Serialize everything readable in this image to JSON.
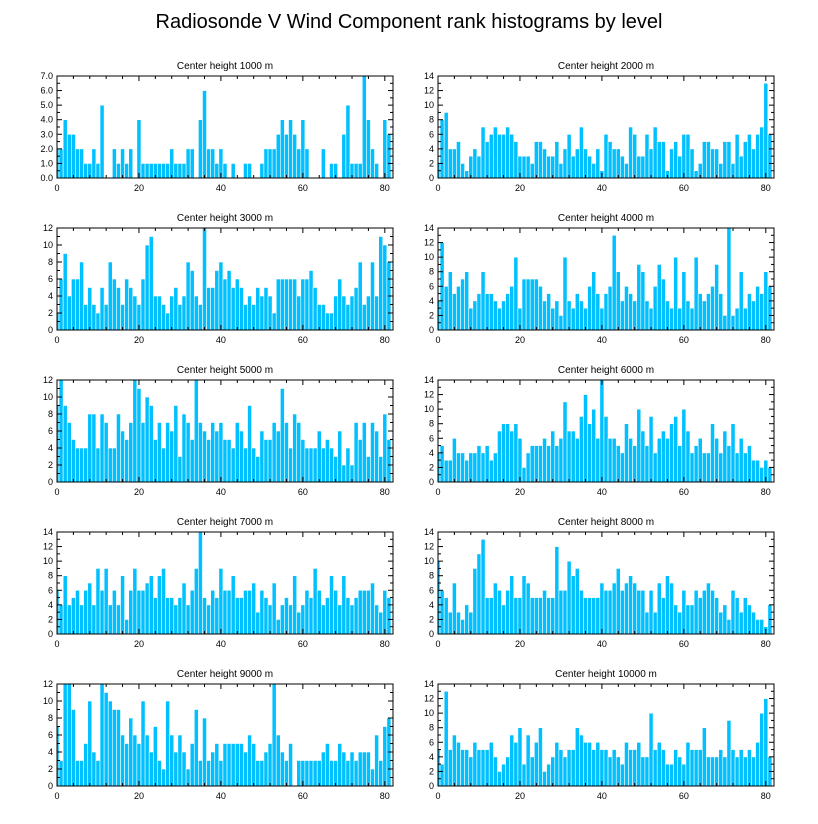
{
  "figure": {
    "title": "Radiosonde V Wind Component rank histograms by level"
  },
  "chart_data": [
    {
      "type": "bar",
      "title": "Center height 1000 m",
      "xlim": [
        0,
        82
      ],
      "ylim": [
        0,
        7
      ],
      "xticks": [
        0,
        20,
        40,
        60,
        80
      ],
      "yticks": [
        0,
        1,
        2,
        3,
        4,
        5,
        6,
        7
      ],
      "ytick_labels": [
        "0.0",
        "1.0",
        "2.0",
        "3.0",
        "4.0",
        "5.0",
        "6.0",
        "7.0"
      ],
      "x_start": 0,
      "values": [
        2,
        2,
        4,
        3,
        3,
        2,
        2,
        1,
        1,
        2,
        1,
        5,
        0,
        0,
        2,
        1,
        2,
        1,
        2,
        0,
        4,
        1,
        1,
        1,
        1,
        1,
        1,
        1,
        2,
        1,
        1,
        1,
        2,
        2,
        0,
        4,
        6,
        2,
        2,
        1,
        2,
        1,
        0,
        1,
        0,
        0,
        1,
        1,
        0,
        0,
        1,
        2,
        2,
        2,
        3,
        4,
        3,
        4,
        3,
        2,
        4,
        2,
        0,
        0,
        0,
        2,
        0,
        1,
        1,
        0,
        3,
        5,
        1,
        1,
        1,
        7,
        4,
        2,
        1,
        0,
        4,
        3
      ]
    },
    {
      "type": "bar",
      "title": "Center height 2000 m",
      "xlim": [
        0,
        82
      ],
      "ylim": [
        0,
        14
      ],
      "xticks": [
        0,
        20,
        40,
        60,
        80
      ],
      "yticks": [
        0,
        2,
        4,
        6,
        8,
        10,
        12,
        14
      ],
      "ytick_labels": [
        "0",
        "2",
        "4",
        "6",
        "8",
        "10",
        "12",
        "14"
      ],
      "x_start": 0,
      "values": [
        2,
        8,
        9,
        4,
        4,
        5,
        2,
        1,
        3,
        4,
        3,
        7,
        5,
        6,
        7,
        6,
        6,
        7,
        6,
        5,
        3,
        3,
        3,
        2,
        5,
        5,
        4,
        3,
        3,
        5,
        2,
        4,
        6,
        3,
        4,
        7,
        4,
        3,
        2,
        4,
        1,
        6,
        5,
        4,
        4,
        3,
        2,
        7,
        6,
        3,
        3,
        6,
        4,
        7,
        5,
        5,
        1,
        4,
        5,
        3,
        6,
        6,
        4,
        1,
        2,
        5,
        5,
        4,
        4,
        2,
        5,
        5,
        2,
        6,
        3,
        5,
        6,
        4,
        6,
        7,
        13,
        6
      ]
    },
    {
      "type": "bar",
      "title": "Center height 3000 m",
      "xlim": [
        0,
        82
      ],
      "ylim": [
        0,
        12
      ],
      "xticks": [
        0,
        20,
        40,
        60,
        80
      ],
      "yticks": [
        0,
        2,
        4,
        6,
        8,
        10,
        12
      ],
      "ytick_labels": [
        "0",
        "2",
        "4",
        "6",
        "8",
        "10",
        "12"
      ],
      "x_start": 0,
      "values": [
        2,
        6,
        9,
        4,
        6,
        6,
        8,
        3,
        5,
        3,
        2,
        5,
        3,
        8,
        6,
        5,
        3,
        6,
        5,
        4,
        3,
        6,
        10,
        11,
        4,
        4,
        3,
        2,
        4,
        5,
        3,
        4,
        8,
        7,
        4,
        3,
        12,
        5,
        5,
        7,
        8,
        6,
        7,
        5,
        6,
        5,
        3,
        4,
        3,
        5,
        4,
        5,
        4,
        2,
        6,
        6,
        6,
        6,
        6,
        4,
        6,
        6,
        7,
        5,
        3,
        3,
        2,
        2,
        4,
        6,
        4,
        3,
        4,
        5,
        8,
        3,
        4,
        8,
        4,
        11,
        10,
        8
      ]
    },
    {
      "type": "bar",
      "title": "Center height 4000 m",
      "xlim": [
        0,
        82
      ],
      "ylim": [
        0,
        14
      ],
      "xticks": [
        0,
        20,
        40,
        60,
        80
      ],
      "yticks": [
        0,
        2,
        4,
        6,
        8,
        10,
        12,
        14
      ],
      "ytick_labels": [
        "0",
        "2",
        "4",
        "6",
        "8",
        "10",
        "12",
        "14"
      ],
      "x_start": 0,
      "values": [
        4,
        12,
        6,
        8,
        5,
        6,
        7,
        8,
        3,
        4,
        5,
        8,
        5,
        5,
        4,
        3,
        4,
        5,
        6,
        10,
        3,
        7,
        7,
        7,
        7,
        6,
        4,
        5,
        3,
        4,
        2,
        10,
        4,
        3,
        5,
        4,
        3,
        6,
        8,
        5,
        3,
        5,
        6,
        13,
        8,
        4,
        6,
        5,
        4,
        9,
        8,
        4,
        3,
        6,
        9,
        7,
        4,
        3,
        10,
        3,
        8,
        4,
        3,
        10,
        5,
        4,
        5,
        6,
        9,
        5,
        2,
        14,
        2,
        3,
        8,
        3,
        5,
        4,
        6,
        5,
        8,
        6
      ]
    },
    {
      "type": "bar",
      "title": "Center height 5000 m",
      "xlim": [
        0,
        82
      ],
      "ylim": [
        0,
        12
      ],
      "xticks": [
        0,
        20,
        40,
        60,
        80
      ],
      "yticks": [
        0,
        2,
        4,
        6,
        8,
        10,
        12
      ],
      "ytick_labels": [
        "0",
        "2",
        "4",
        "6",
        "8",
        "10",
        "12"
      ],
      "x_start": 0,
      "values": [
        9,
        12,
        9,
        7,
        5,
        4,
        4,
        4,
        8,
        8,
        4,
        8,
        7,
        4,
        4,
        8,
        6,
        5,
        7,
        12,
        11,
        7,
        10,
        9,
        5,
        7,
        4,
        7,
        6,
        9,
        3,
        8,
        7,
        5,
        12,
        7,
        6,
        5,
        7,
        6,
        7,
        5,
        5,
        4,
        7,
        6,
        4,
        9,
        4,
        3,
        6,
        5,
        5,
        7,
        6,
        11,
        7,
        4,
        8,
        7,
        5,
        4,
        4,
        4,
        6,
        4,
        5,
        4,
        3,
        6,
        2,
        4,
        2,
        7,
        5,
        7,
        3,
        7,
        6,
        3,
        8,
        5
      ]
    },
    {
      "type": "bar",
      "title": "Center height 6000 m",
      "xlim": [
        0,
        82
      ],
      "ylim": [
        0,
        14
      ],
      "xticks": [
        0,
        20,
        40,
        60,
        80
      ],
      "yticks": [
        0,
        2,
        4,
        6,
        8,
        10,
        12,
        14
      ],
      "ytick_labels": [
        "0",
        "2",
        "4",
        "6",
        "8",
        "10",
        "12",
        "14"
      ],
      "x_start": 0,
      "values": [
        4,
        5,
        3,
        3,
        6,
        4,
        4,
        3,
        4,
        4,
        5,
        4,
        5,
        3,
        4,
        7,
        8,
        8,
        7,
        8,
        6,
        2,
        4,
        5,
        5,
        5,
        6,
        5,
        7,
        5,
        6,
        11,
        7,
        7,
        6,
        9,
        12,
        8,
        10,
        6,
        14,
        9,
        6,
        6,
        5,
        4,
        8,
        6,
        5,
        10,
        7,
        5,
        9,
        4,
        6,
        7,
        6,
        8,
        9,
        5,
        10,
        7,
        4,
        5,
        6,
        4,
        4,
        8,
        6,
        4,
        7,
        5,
        8,
        4,
        6,
        4,
        5,
        3,
        3,
        2,
        3,
        2
      ]
    },
    {
      "type": "bar",
      "title": "Center height 7000 m",
      "xlim": [
        0,
        82
      ],
      "ylim": [
        0,
        14
      ],
      "xticks": [
        0,
        20,
        40,
        60,
        80
      ],
      "yticks": [
        0,
        2,
        4,
        6,
        8,
        10,
        12,
        14
      ],
      "ytick_labels": [
        "0",
        "2",
        "4",
        "6",
        "8",
        "10",
        "12",
        "14"
      ],
      "x_start": 0,
      "values": [
        6,
        4,
        8,
        4,
        5,
        6,
        4,
        6,
        7,
        4,
        9,
        6,
        9,
        4,
        6,
        4,
        8,
        2,
        6,
        9,
        6,
        6,
        7,
        8,
        5,
        8,
        9,
        5,
        5,
        4,
        5,
        7,
        4,
        6,
        9,
        14,
        5,
        4,
        6,
        5,
        9,
        6,
        6,
        8,
        5,
        5,
        6,
        6,
        7,
        3,
        6,
        5,
        4,
        7,
        2,
        4,
        5,
        4,
        8,
        3,
        4,
        6,
        5,
        9,
        6,
        4,
        5,
        8,
        6,
        4,
        8,
        5,
        4,
        5,
        6,
        6,
        6,
        7,
        4,
        3,
        6,
        5
      ]
    },
    {
      "type": "bar",
      "title": "Center height 8000 m",
      "xlim": [
        0,
        82
      ],
      "ylim": [
        0,
        14
      ],
      "xticks": [
        0,
        20,
        40,
        60,
        80
      ],
      "yticks": [
        0,
        2,
        4,
        6,
        8,
        10,
        12,
        14
      ],
      "ytick_labels": [
        "0",
        "2",
        "4",
        "6",
        "8",
        "10",
        "12",
        "14"
      ],
      "x_start": 0,
      "values": [
        10,
        6,
        5,
        3,
        7,
        3,
        2,
        4,
        3,
        9,
        11,
        13,
        5,
        5,
        7,
        6,
        4,
        6,
        8,
        5,
        5,
        8,
        7,
        5,
        5,
        5,
        6,
        5,
        5,
        12,
        6,
        6,
        10,
        8,
        9,
        6,
        5,
        5,
        5,
        5,
        7,
        6,
        6,
        7,
        9,
        6,
        7,
        8,
        7,
        6,
        6,
        3,
        6,
        3,
        7,
        5,
        8,
        7,
        4,
        3,
        6,
        4,
        4,
        6,
        5,
        6,
        7,
        6,
        5,
        3,
        4,
        2,
        6,
        5,
        3,
        5,
        4,
        3,
        2,
        2,
        1,
        4
      ]
    },
    {
      "type": "bar",
      "title": "Center height 9000 m",
      "xlim": [
        0,
        82
      ],
      "ylim": [
        0,
        12
      ],
      "xticks": [
        0,
        20,
        40,
        60,
        80
      ],
      "yticks": [
        0,
        2,
        4,
        6,
        8,
        10,
        12
      ],
      "ytick_labels": [
        "0",
        "2",
        "4",
        "6",
        "8",
        "10",
        "12"
      ],
      "x_start": 0,
      "values": [
        7,
        3,
        12,
        12,
        9,
        3,
        3,
        5,
        10,
        4,
        3,
        12,
        11,
        10,
        9,
        9,
        6,
        5,
        8,
        6,
        5,
        10,
        6,
        4,
        7,
        3,
        2,
        10,
        6,
        4,
        6,
        4,
        2,
        5,
        9,
        3,
        8,
        3,
        4,
        5,
        3,
        5,
        5,
        5,
        5,
        5,
        4,
        6,
        5,
        3,
        3,
        4,
        5,
        12,
        6,
        4,
        3,
        5,
        0,
        3,
        3,
        3,
        3,
        3,
        3,
        4,
        5,
        3,
        3,
        5,
        4,
        3,
        4,
        3,
        4,
        4,
        4,
        2,
        6,
        3,
        7,
        8
      ]
    },
    {
      "type": "bar",
      "title": "Center height 10000 m",
      "xlim": [
        0,
        82
      ],
      "ylim": [
        0,
        14
      ],
      "xticks": [
        0,
        20,
        40,
        60,
        80
      ],
      "yticks": [
        0,
        2,
        4,
        6,
        8,
        10,
        12,
        14
      ],
      "ytick_labels": [
        "0",
        "2",
        "4",
        "6",
        "8",
        "10",
        "12",
        "14"
      ],
      "x_start": 0,
      "values": [
        5,
        3,
        13,
        5,
        7,
        6,
        5,
        5,
        4,
        6,
        5,
        5,
        5,
        6,
        4,
        2,
        3,
        4,
        7,
        6,
        8,
        3,
        7,
        4,
        6,
        8,
        2,
        3,
        4,
        6,
        5,
        4,
        5,
        5,
        8,
        7,
        6,
        6,
        5,
        6,
        5,
        5,
        4,
        5,
        4,
        3,
        6,
        5,
        5,
        6,
        4,
        4,
        10,
        5,
        6,
        5,
        3,
        3,
        5,
        4,
        3,
        6,
        5,
        5,
        5,
        8,
        4,
        4,
        4,
        5,
        4,
        9,
        5,
        4,
        5,
        4,
        5,
        4,
        6,
        10,
        12,
        4
      ]
    }
  ]
}
